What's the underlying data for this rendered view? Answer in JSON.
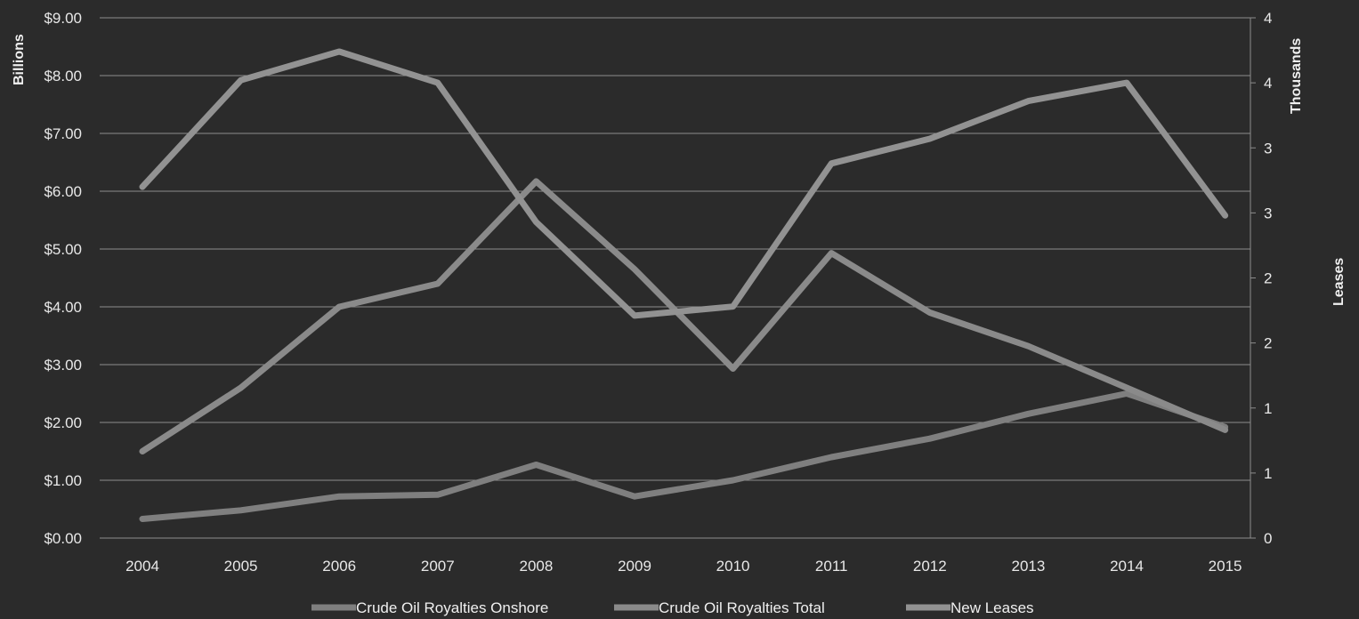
{
  "chart_data": {
    "type": "line",
    "x": [
      "2004",
      "2005",
      "2006",
      "2007",
      "2008",
      "2009",
      "2010",
      "2011",
      "2012",
      "2013",
      "2014",
      "2015"
    ],
    "y_left": {
      "label": "Billions",
      "ticks": [
        "$0.00",
        "$1.00",
        "$2.00",
        "$3.00",
        "$4.00",
        "$5.00",
        "$6.00",
        "$7.00",
        "$8.00",
        "$9.00"
      ],
      "lim": [
        0,
        9
      ]
    },
    "y_right": {
      "label_top": "Thousands",
      "label": "Leases",
      "ticks": [
        "0",
        "1",
        "1",
        "2",
        "2",
        "3",
        "3",
        "4",
        "4"
      ],
      "lim": [
        0,
        4
      ]
    },
    "grid": true,
    "legend_position": "bottom",
    "series": [
      {
        "name": "Crude Oil Royalties Onshore",
        "axis": "left",
        "color": "#7f7f7f",
        "values": [
          0.33,
          0.48,
          0.72,
          0.75,
          1.27,
          0.72,
          1.0,
          1.4,
          1.72,
          2.15,
          2.5,
          1.92
        ]
      },
      {
        "name": "Crude Oil Royalties Total",
        "axis": "left",
        "color": "#8a8a8a",
        "values": [
          1.5,
          2.6,
          4.0,
          4.4,
          6.17,
          4.65,
          2.93,
          4.93,
          3.9,
          3.32,
          2.6,
          1.87
        ]
      },
      {
        "name": "New Leases",
        "axis": "right",
        "color": "#929292",
        "values": [
          2.7,
          3.52,
          3.74,
          3.5,
          2.43,
          1.71,
          1.78,
          2.88,
          3.07,
          3.36,
          3.5,
          2.48
        ]
      }
    ]
  }
}
